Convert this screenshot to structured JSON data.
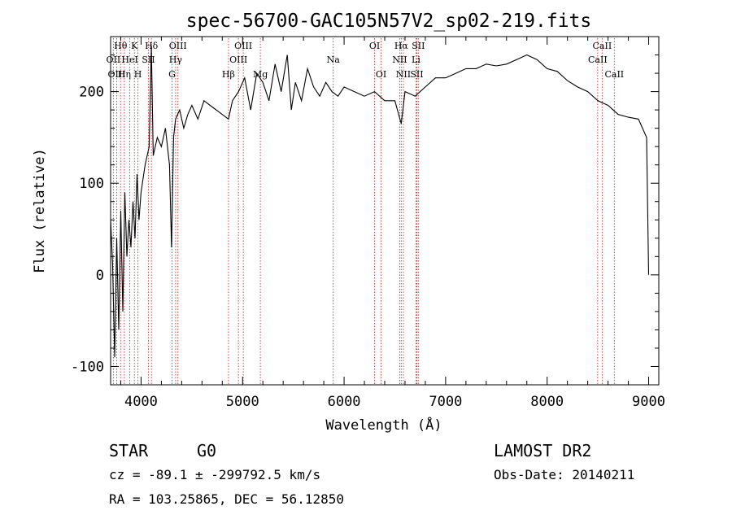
{
  "chart_data": {
    "type": "line",
    "title": "spec-56700-GAC105N57V2_sp02-219.fits",
    "xlabel": "Wavelength (Å)",
    "ylabel": "Flux (relative)",
    "xlim": [
      3700,
      9100
    ],
    "ylim": [
      -120,
      260
    ],
    "x_ticks": [
      4000,
      5000,
      6000,
      7000,
      8000,
      9000
    ],
    "y_ticks": [
      -100,
      0,
      100,
      200
    ],
    "series": [
      {
        "name": "flux",
        "x": [
          3700,
          3720,
          3740,
          3760,
          3780,
          3800,
          3820,
          3840,
          3860,
          3880,
          3900,
          3920,
          3940,
          3960,
          3980,
          4000,
          4040,
          4080,
          4101,
          4120,
          4160,
          4200,
          4240,
          4280,
          4300,
          4320,
          4340,
          4380,
          4420,
          4460,
          4500,
          4560,
          4620,
          4680,
          4740,
          4800,
          4861,
          4900,
          4960,
          5020,
          5080,
          5140,
          5200,
          5260,
          5320,
          5380,
          5440,
          5480,
          5520,
          5580,
          5640,
          5700,
          5760,
          5820,
          5880,
          5940,
          6000,
          6100,
          6200,
          6300,
          6400,
          6500,
          6563,
          6600,
          6700,
          6800,
          6900,
          7000,
          7100,
          7200,
          7300,
          7400,
          7500,
          7600,
          7700,
          7800,
          7900,
          8000,
          8100,
          8200,
          8300,
          8400,
          8500,
          8600,
          8700,
          8800,
          8900,
          8980,
          9000
        ],
        "y": [
          60,
          10,
          -90,
          40,
          -60,
          70,
          -40,
          90,
          20,
          60,
          30,
          80,
          40,
          110,
          60,
          90,
          120,
          140,
          250,
          130,
          150,
          140,
          160,
          120,
          30,
          150,
          170,
          180,
          160,
          175,
          185,
          170,
          190,
          185,
          180,
          175,
          170,
          190,
          200,
          215,
          180,
          220,
          210,
          190,
          230,
          200,
          240,
          180,
          210,
          190,
          225,
          205,
          195,
          210,
          200,
          195,
          205,
          200,
          195,
          200,
          190,
          190,
          165,
          200,
          195,
          205,
          215,
          215,
          220,
          225,
          225,
          230,
          228,
          230,
          235,
          240,
          235,
          225,
          222,
          212,
          205,
          200,
          190,
          185,
          175,
          172,
          170,
          150,
          0
        ]
      }
    ],
    "line_labels": [
      {
        "name": "Hθ",
        "x": 3798,
        "row": 1
      },
      {
        "name": "K",
        "x": 3934,
        "row": 1
      },
      {
        "name": "Hδ",
        "x": 4102,
        "row": 1
      },
      {
        "name": "OIII",
        "x": 4363,
        "row": 1
      },
      {
        "name": "OIII",
        "x": 5007,
        "row": 1
      },
      {
        "name": "OI",
        "x": 6300,
        "row": 1
      },
      {
        "name": "Hα",
        "x": 6563,
        "row": 1
      },
      {
        "name": "SII",
        "x": 6731,
        "row": 1
      },
      {
        "name": "CaII",
        "x": 8542,
        "row": 1
      },
      {
        "name": "OII",
        "x": 3727,
        "row": 2
      },
      {
        "name": "HeI",
        "x": 3889,
        "row": 2
      },
      {
        "name": "SII",
        "x": 4072,
        "row": 2
      },
      {
        "name": "Hγ",
        "x": 4340,
        "row": 2
      },
      {
        "name": "OIII",
        "x": 4959,
        "row": 2
      },
      {
        "name": "Na",
        "x": 5893,
        "row": 2
      },
      {
        "name": "NII",
        "x": 6548,
        "row": 2
      },
      {
        "name": "Li",
        "x": 6708,
        "row": 2
      },
      {
        "name": "CaII",
        "x": 8498,
        "row": 2
      },
      {
        "name": "OIII",
        "x": 3760,
        "row": 3
      },
      {
        "name": "Hη",
        "x": 3835,
        "row": 3
      },
      {
        "name": "H",
        "x": 3969,
        "row": 3
      },
      {
        "name": "G",
        "x": 4305,
        "row": 3
      },
      {
        "name": "Hβ",
        "x": 4861,
        "row": 3
      },
      {
        "name": "Mg",
        "x": 5175,
        "row": 3
      },
      {
        "name": "OI",
        "x": 6364,
        "row": 3
      },
      {
        "name": "NII",
        "x": 6584,
        "row": 3
      },
      {
        "name": "SII",
        "x": 6716,
        "row": 3
      },
      {
        "name": "CaII",
        "x": 8662,
        "row": 3
      }
    ]
  },
  "info": {
    "object_class": "STAR",
    "subclass": "G0",
    "survey": "LAMOST DR2",
    "redshift": "cz = -89.1 ± -299792.5 km/s",
    "obs_date": "Obs-Date: 20140211",
    "coords": "RA = 103.25865, DEC =  56.12850"
  }
}
